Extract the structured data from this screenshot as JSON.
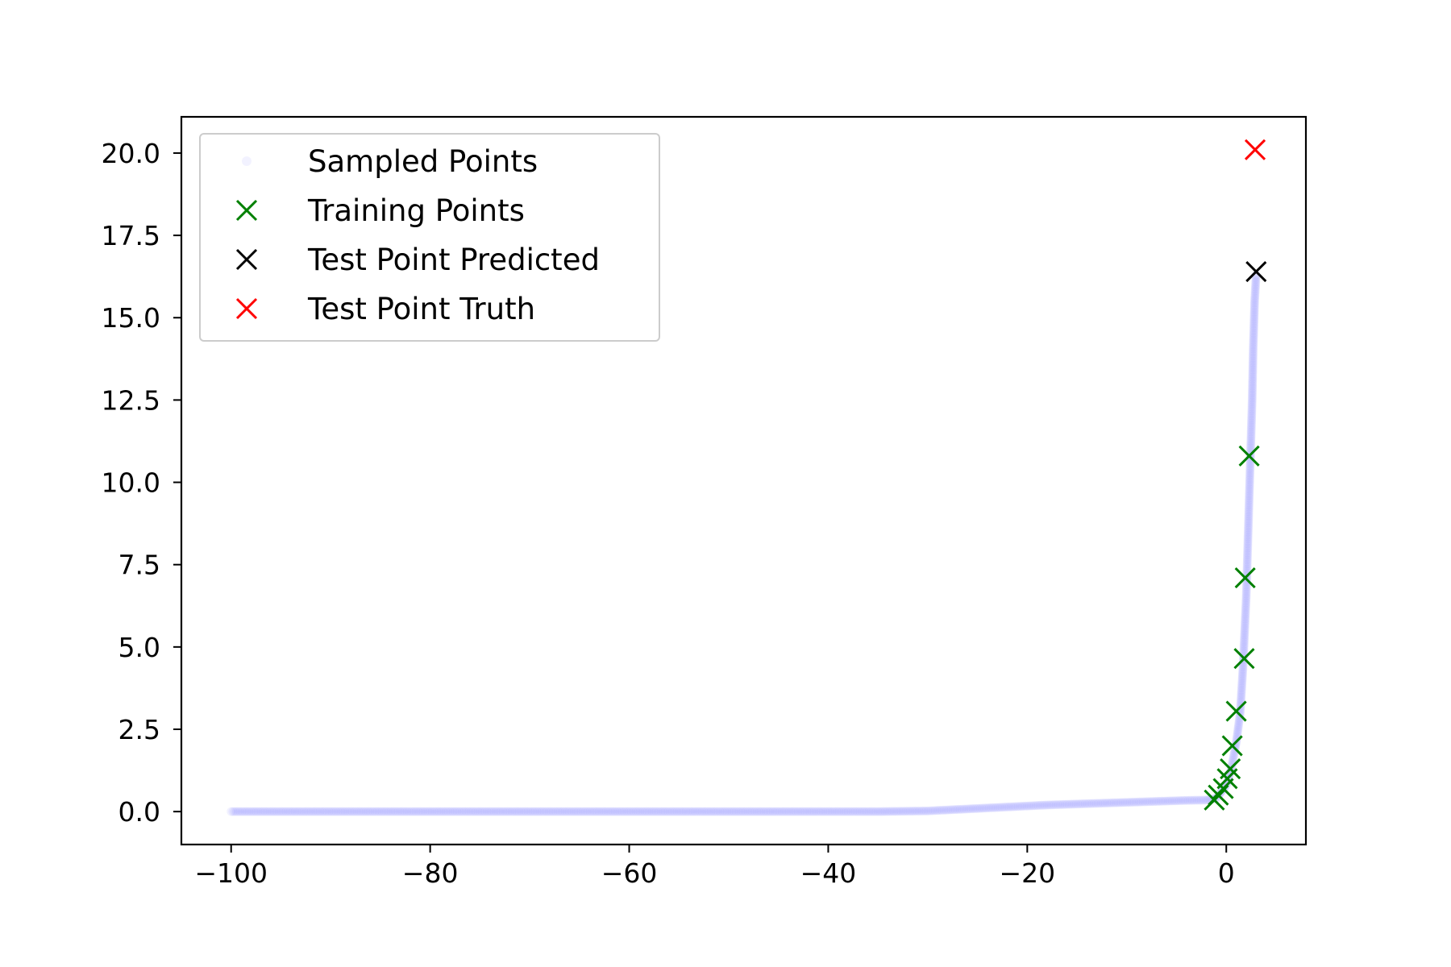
{
  "chart_data": {
    "type": "scatter",
    "xlim": [
      -105,
      8
    ],
    "ylim": [
      -1.0,
      21.1
    ],
    "x_ticks": [
      -100,
      -80,
      -60,
      -40,
      -20,
      0
    ],
    "x_tick_labels": [
      "−100",
      "−80",
      "−60",
      "−40",
      "−20",
      "0"
    ],
    "y_ticks": [
      0,
      2.5,
      5,
      7.5,
      10,
      12.5,
      15,
      17.5,
      20
    ],
    "y_tick_labels": [
      "0.0",
      "2.5",
      "5.0",
      "7.5",
      "10.0",
      "12.5",
      "15.0",
      "17.5",
      "20.0"
    ],
    "grid": false,
    "legend_position": "top-left",
    "series": [
      {
        "name": "Sampled Points",
        "marker": "circle",
        "color": "#0000ff",
        "alpha": 0.05,
        "points": [
          [
            -100,
            0.0
          ],
          [
            -95,
            0.0
          ],
          [
            -90,
            0.0
          ],
          [
            -85,
            0.0
          ],
          [
            -80,
            0.0
          ],
          [
            -75,
            0.0
          ],
          [
            -70,
            0.0
          ],
          [
            -65,
            0.0
          ],
          [
            -60,
            0.0
          ],
          [
            -55,
            0.0
          ],
          [
            -50,
            0.0
          ],
          [
            -45,
            0.0
          ],
          [
            -40,
            0.0
          ],
          [
            -35,
            0.0
          ],
          [
            -30,
            0.02
          ],
          [
            -28,
            0.05
          ],
          [
            -26,
            0.08
          ],
          [
            -24,
            0.11
          ],
          [
            -22,
            0.14
          ],
          [
            -20,
            0.17
          ],
          [
            -18,
            0.2
          ],
          [
            -16,
            0.22
          ],
          [
            -14,
            0.24
          ],
          [
            -12,
            0.26
          ],
          [
            -10,
            0.28
          ],
          [
            -8,
            0.3
          ],
          [
            -6,
            0.32
          ],
          [
            -4,
            0.34
          ],
          [
            -2,
            0.35
          ],
          [
            -1,
            0.4
          ],
          [
            -0.5,
            0.6
          ],
          [
            0,
            0.8
          ],
          [
            0.5,
            1.3
          ],
          [
            1,
            2.1
          ],
          [
            1.4,
            3.0
          ],
          [
            1.7,
            4.5
          ],
          [
            2.0,
            6.5
          ],
          [
            2.2,
            8.5
          ],
          [
            2.4,
            10.5
          ],
          [
            2.6,
            12.5
          ],
          [
            2.7,
            14.0
          ],
          [
            2.85,
            15.5
          ],
          [
            3.0,
            16.3
          ]
        ]
      },
      {
        "name": "Training Points",
        "marker": "x",
        "color": "#008000",
        "points": [
          [
            -1.2,
            0.35
          ],
          [
            -0.8,
            0.5
          ],
          [
            -0.3,
            0.7
          ],
          [
            0.1,
            1.0
          ],
          [
            0.4,
            1.3
          ],
          [
            0.6,
            2.0
          ],
          [
            1.0,
            3.05
          ],
          [
            1.8,
            4.65
          ],
          [
            1.9,
            7.1
          ],
          [
            2.3,
            10.8
          ]
        ]
      },
      {
        "name": "Test Point Predicted",
        "marker": "x",
        "color": "#000000",
        "points": [
          [
            3.0,
            16.4
          ]
        ]
      },
      {
        "name": "Test Point Truth",
        "marker": "x",
        "color": "#ff0000",
        "points": [
          [
            2.9,
            20.1
          ]
        ]
      }
    ]
  }
}
